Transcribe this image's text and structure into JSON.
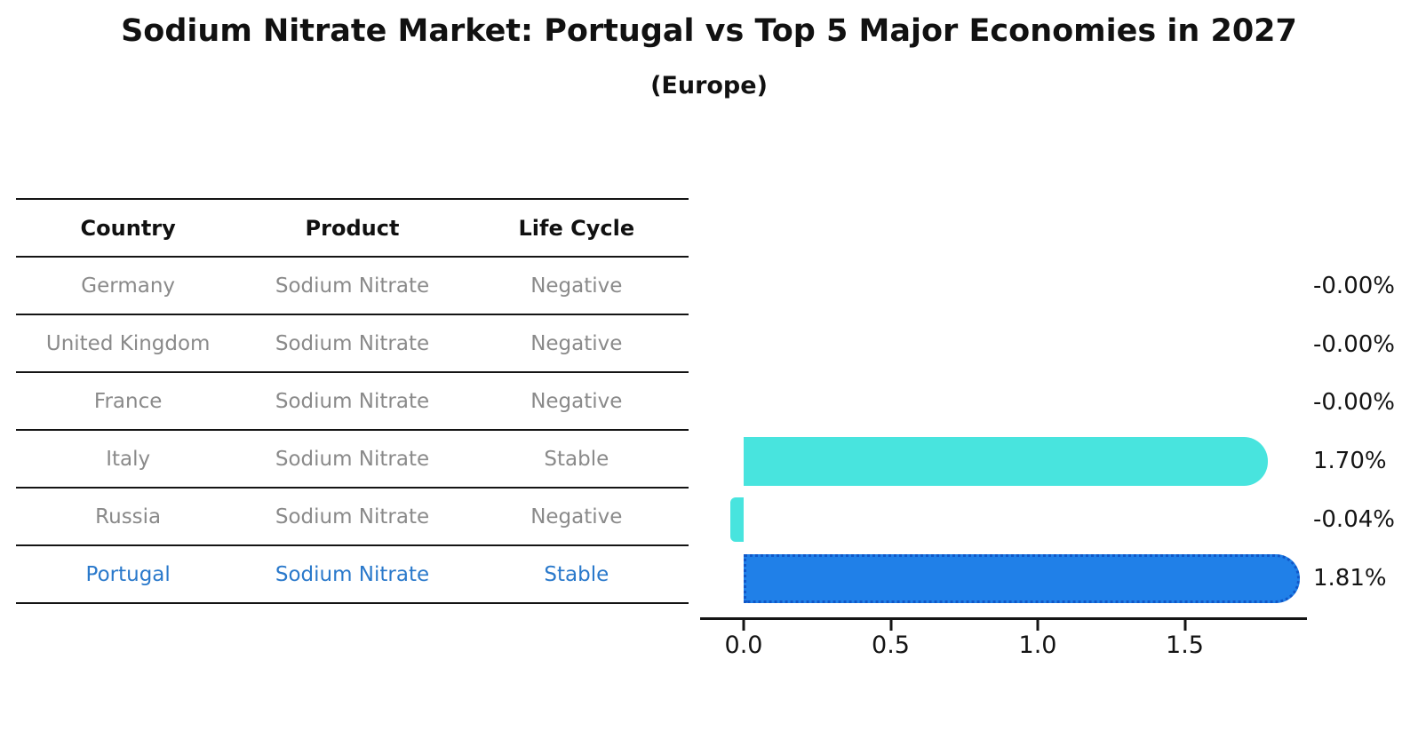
{
  "header": {
    "title": "Sodium Nitrate Market: Portugal vs Top 5 Major Economies in 2027",
    "subtitle": "(Europe)"
  },
  "table": {
    "columns": [
      "Country",
      "Product",
      "Life Cycle"
    ],
    "rows": [
      {
        "country": "Germany",
        "product": "Sodium Nitrate",
        "life_cycle": "Negative",
        "highlighted": false
      },
      {
        "country": "United Kingdom",
        "product": "Sodium Nitrate",
        "life_cycle": "Negative",
        "highlighted": false
      },
      {
        "country": "France",
        "product": "Sodium Nitrate",
        "life_cycle": "Negative",
        "highlighted": false
      },
      {
        "country": "Italy",
        "product": "Sodium Nitrate",
        "life_cycle": "Stable",
        "highlighted": false
      },
      {
        "country": "Russia",
        "product": "Sodium Nitrate",
        "life_cycle": "Negative",
        "highlighted": false
      },
      {
        "country": "Portugal",
        "product": "Sodium Nitrate",
        "life_cycle": "Stable",
        "highlighted": true
      }
    ]
  },
  "chart_data": {
    "type": "bar",
    "orientation": "horizontal",
    "title": "Sodium Nitrate Market: Portugal vs Top 5 Major Economies in 2027",
    "subtitle": "(Europe)",
    "categories": [
      "Germany",
      "United Kingdom",
      "France",
      "Italy",
      "Russia",
      "Portugal"
    ],
    "values": [
      -0.0,
      -0.0,
      -0.0,
      1.7,
      -0.04,
      1.81
    ],
    "value_labels": [
      "-0.00%",
      "-0.00%",
      "-0.00%",
      "1.70%",
      "-0.04%",
      "1.81%"
    ],
    "x_tick_labels": [
      "0.0",
      "0.5",
      "1.0",
      "1.5"
    ],
    "x_tick_values": [
      0,
      0.5,
      1,
      1.5
    ],
    "xlim": [
      -0.15,
      1.92
    ],
    "grid": false,
    "legend": null,
    "highlight_category": "Portugal",
    "colors": {
      "default_bar": "#48e4de",
      "highlight_bar": "#2080e8",
      "highlight_bar_border": "#1057c8",
      "highlight_text": "#2a79cb",
      "muted_text": "#8a8a8a",
      "axis": "#141414"
    }
  }
}
